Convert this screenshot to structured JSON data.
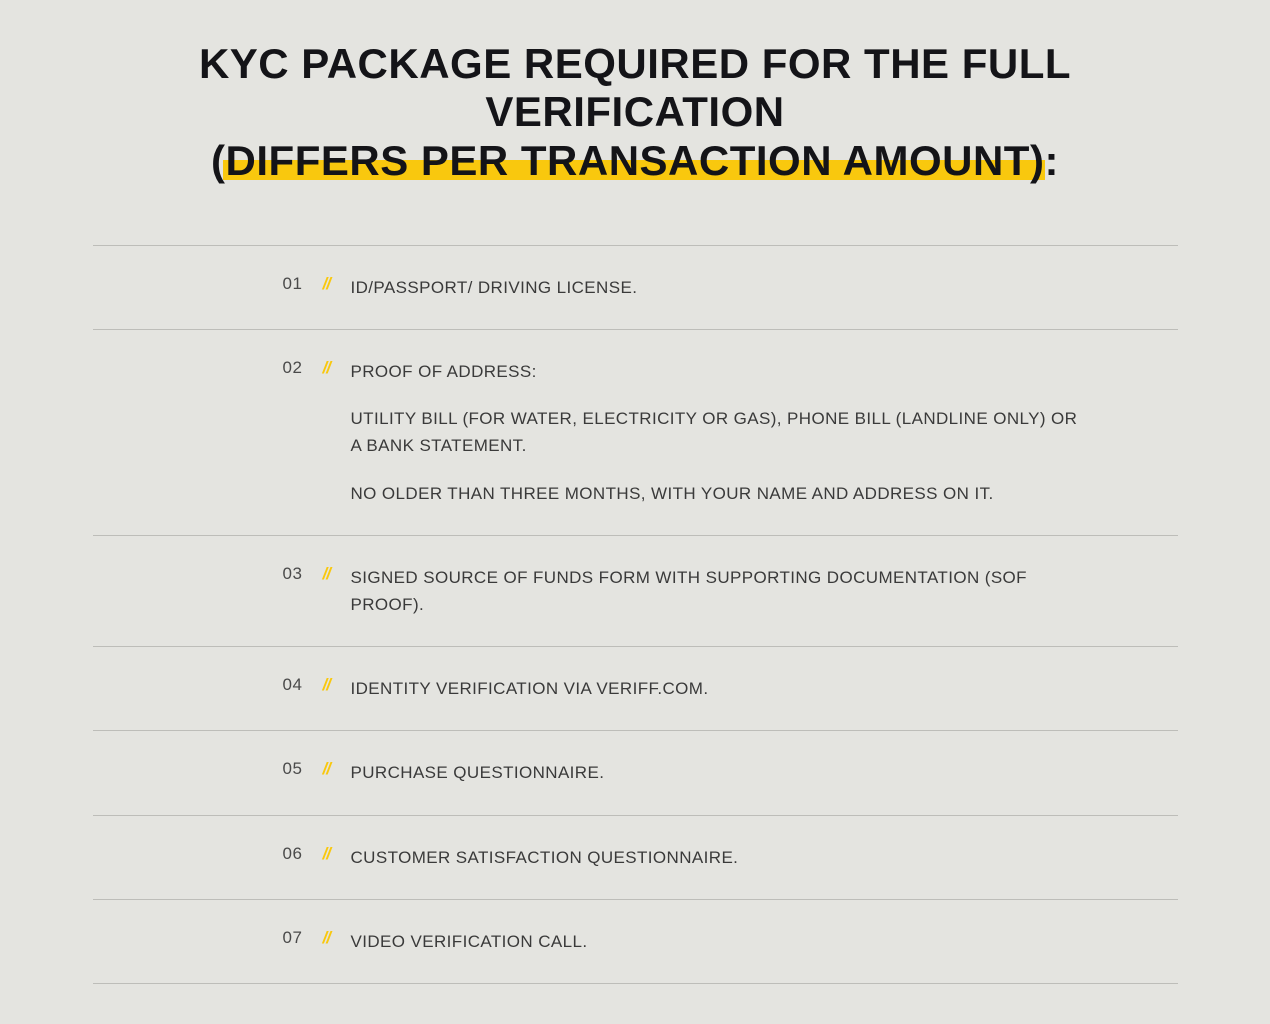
{
  "colors": {
    "background": "#e4e4e0",
    "text_dark": "#141418",
    "text_body": "#3a3a3a",
    "text_number": "#4a4a4a",
    "highlight": "#f9c80e",
    "divider": "#bdbdb9"
  },
  "typography": {
    "title_fontsize": 42,
    "title_fontweight": 700,
    "body_fontsize": 17,
    "body_fontweight": 400
  },
  "title": {
    "line1": "KYC PACKAGE REQUIRED FOR THE FULL VERIFICATION",
    "line2": "(DIFFERS PER TRANSACTION AMOUNT):"
  },
  "items": [
    {
      "num": "01",
      "paragraphs": [
        "ID/PASSPORT/ DRIVING LICENSE."
      ]
    },
    {
      "num": "02",
      "paragraphs": [
        "PROOF OF ADDRESS:",
        "UTILITY BILL (FOR WATER, ELECTRICITY OR GAS), PHONE BILL (LANDLINE ONLY) OR A BANK STATEMENT.",
        "NO OLDER THAN THREE MONTHS, WITH YOUR NAME AND ADDRESS ON IT."
      ]
    },
    {
      "num": "03",
      "paragraphs": [
        "SIGNED SOURCE OF FUNDS FORM WITH SUPPORTING DOCUMENTATION (SOF PROOF)."
      ]
    },
    {
      "num": "04",
      "paragraphs": [
        "IDENTITY VERIFICATION VIA VERIFF.COM."
      ]
    },
    {
      "num": "05",
      "paragraphs": [
        "PURCHASE QUESTIONNAIRE."
      ]
    },
    {
      "num": "06",
      "paragraphs": [
        "CUSTOMER SATISFACTION QUESTIONNAIRE."
      ]
    },
    {
      "num": "07",
      "paragraphs": [
        "VIDEO VERIFICATION CALL."
      ]
    }
  ],
  "slash_glyph": "//"
}
